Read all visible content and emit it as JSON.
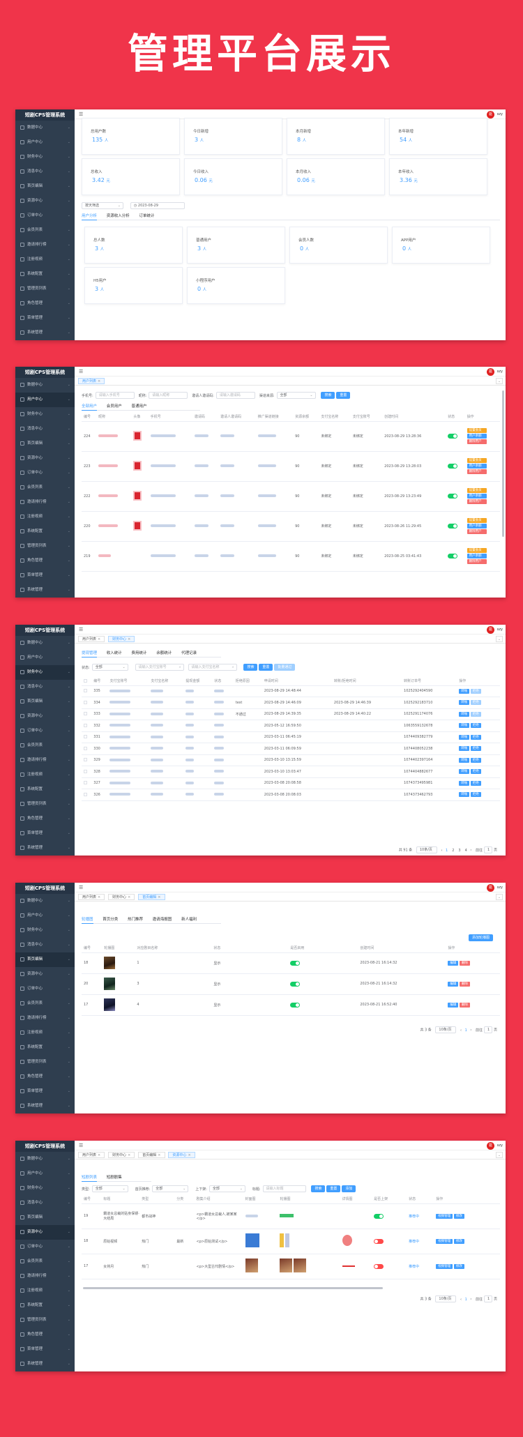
{
  "hero_title": "管理平台展示",
  "brand": "短剧CPS管理系统",
  "user": {
    "avatar_text": "驱",
    "name": "szy"
  },
  "sidebar_items": [
    "数据中心",
    "用户中心",
    "财务中心",
    "消息中心",
    "首页编辑",
    "资源中心",
    "订单中心",
    "会员列表",
    "邀请排行榜",
    "注册视频",
    "系统配置",
    "管理员列表",
    "角色管理",
    "菜单管理",
    "系统管理"
  ],
  "tabs": {
    "user_list": "用户列表",
    "finance": "财务中心",
    "home_edit": "首页编辑",
    "resource": "资源中心"
  },
  "p1": {
    "cards_row": [
      {
        "label": "总用户数",
        "value": "135",
        "unit": "人"
      },
      {
        "label": "今日新增",
        "value": "3",
        "unit": "人"
      },
      {
        "label": "本月新增",
        "value": "8",
        "unit": "人"
      },
      {
        "label": "本年新增",
        "value": "54",
        "unit": "人"
      },
      {
        "label": "总收入",
        "value": "3.42",
        "unit": "元"
      },
      {
        "label": "今日收入",
        "value": "0.06",
        "unit": "元"
      },
      {
        "label": "本月收入",
        "value": "0.06",
        "unit": "元"
      },
      {
        "label": "本年收入",
        "value": "3.36",
        "unit": "元"
      }
    ],
    "filter_select": "按天筛选",
    "date_value": "2023-08-29",
    "subtabs": [
      "用户分析",
      "资源收入分析",
      "订单统计"
    ],
    "cards_users": [
      {
        "label": "总人数",
        "value": "3",
        "unit": "人"
      },
      {
        "label": "普通用户",
        "value": "3",
        "unit": "人"
      },
      {
        "label": "会员人数",
        "value": "0",
        "unit": "人"
      },
      {
        "label": "APP用户",
        "value": "0",
        "unit": "人"
      },
      {
        "label": "H5用户",
        "value": "3",
        "unit": "人"
      },
      {
        "label": "小程序用户",
        "value": "0",
        "unit": "人"
      }
    ]
  },
  "p2": {
    "filters": {
      "phone_label": "手机号:",
      "phone_ph": "请输入手机号",
      "nick_label": "昵称:",
      "nick_ph": "请输入昵称",
      "inviter_label": "邀请人邀请码:",
      "inviter_ph": "请输入邀请码",
      "src_label": "渠道来源:",
      "src_value": "全部",
      "search": "搜索",
      "reset": "重置"
    },
    "subtabs": [
      "全部用户",
      "会员用户",
      "普通用户"
    ],
    "headers": [
      "编号",
      "昵称",
      "头像",
      "手机号",
      "邀请码",
      "邀请人邀请码",
      "推广渠道链接",
      "资源余额",
      "支付宝名称",
      "支付宝账号",
      "创建时间",
      "状态",
      "操作"
    ],
    "rows": [
      {
        "id": "224",
        "balance": "90",
        "alipay_name": "未绑定",
        "alipay_acc": "未绑定",
        "time": "2023-08-29 13:28:36"
      },
      {
        "id": "223",
        "balance": "90",
        "alipay_name": "未绑定",
        "alipay_acc": "未绑定",
        "time": "2023-08-29 13:28:03"
      },
      {
        "id": "222",
        "balance": "90",
        "alipay_name": "未绑定",
        "alipay_acc": "未绑定",
        "time": "2023-08-29 13:23:49"
      },
      {
        "id": "220",
        "balance": "90",
        "alipay_name": "未绑定",
        "alipay_acc": "未绑定",
        "time": "2023-08-26 11:29:45"
      },
      {
        "id": "219",
        "balance": "90",
        "alipay_name": "未绑定",
        "alipay_acc": "未绑定",
        "time": "2023-08-25 03:41:43"
      }
    ],
    "ops": [
      "设置会员",
      "用户余额",
      "删除用户"
    ]
  },
  "p3": {
    "subtabs": [
      "提现管理",
      "收入统计",
      "费用统计",
      "余额统计",
      "代理记录"
    ],
    "status_label": "状态:",
    "status_value": "全部",
    "ph1": "请输入支付宝账号",
    "ph2": "请输入支付宝名称",
    "btn_search": "搜索",
    "btn_reset": "重置",
    "btn_batch": "批量通过",
    "headers": [
      "编号",
      "支付宝账号",
      "支付宝名称",
      "提现金额",
      "状态",
      "拒绝原因",
      "申请时间",
      "转账/拒绝时间",
      "转账订单号",
      "操作"
    ],
    "rows": [
      {
        "id": "335",
        "reason": "",
        "apply": "2023-08-29 14:48:44",
        "done": "",
        "order": "1025292404590"
      },
      {
        "id": "334",
        "reason": "test",
        "apply": "2023-08-29 14:46:09",
        "done": "2023-08-29 14:46:39",
        "order": "1025292183710"
      },
      {
        "id": "333",
        "reason": "不通过",
        "apply": "2023-08-29 14:39:35",
        "done": "2023-08-29 14:40:22",
        "order": "1025291174076"
      },
      {
        "id": "332",
        "reason": "",
        "apply": "2023-05-12 16:59:50",
        "done": "",
        "order": "1063559132678"
      },
      {
        "id": "331",
        "reason": "",
        "apply": "2023-03-11 06:45:19",
        "done": "",
        "order": "1074409382779"
      },
      {
        "id": "330",
        "reason": "",
        "apply": "2023-03-11 06:09:59",
        "done": "",
        "order": "1074408052238"
      },
      {
        "id": "329",
        "reason": "",
        "apply": "2023-03-10 13:15:59",
        "done": "",
        "order": "1074402397164"
      },
      {
        "id": "328",
        "reason": "",
        "apply": "2023-03-10 13:03:47",
        "done": "",
        "order": "1074404882677"
      },
      {
        "id": "327",
        "reason": "",
        "apply": "2023-03-08 20:08:58",
        "done": "",
        "order": "1074373495981"
      },
      {
        "id": "326",
        "reason": "",
        "apply": "2023-03-08 20:08:03",
        "done": "",
        "order": "1074373462793"
      }
    ],
    "ops": [
      "转账",
      "拒绝"
    ],
    "pager": {
      "total": "共 91 条",
      "size": "10条/页",
      "pages": [
        "1",
        "2",
        "3",
        "4"
      ],
      "goto": "前往",
      "page": "1",
      "unit": "页"
    }
  },
  "p4": {
    "subtabs": [
      "轮播图",
      "首页分类",
      "热门推荐",
      "邀请海报图",
      "新人福利"
    ],
    "add_btn": "添加轮播图",
    "headers": [
      "编号",
      "轮播图",
      "对应剧目名称",
      "状态",
      "是否启用",
      "创建时间",
      "操作"
    ],
    "rows": [
      {
        "id": "18",
        "name": "1",
        "state": "显示",
        "time": "2023-08-21 16:14:32"
      },
      {
        "id": "20",
        "name": "3",
        "state": "显示",
        "time": "2023-08-21 16:14:32"
      },
      {
        "id": "17",
        "name": "4",
        "state": "显示",
        "time": "2023-08-21 16:52:40"
      }
    ],
    "ops": [
      "编辑",
      "删除"
    ],
    "pager": {
      "total": "共 3 条",
      "size": "10条/页",
      "page": "1",
      "goto": "前往",
      "unit": "页"
    }
  },
  "p5": {
    "subtabs": [
      "短剧列表",
      "短剧剧集"
    ],
    "filters": {
      "type_label": "类型:",
      "type_value": "全部",
      "rec_label": "首页推荐:",
      "rec_value": "全部",
      "shelf_label": "上下架:",
      "shelf_value": "全部",
      "title_label": "标题:",
      "title_ph": "请输入标题",
      "search": "搜索",
      "reset": "重置",
      "add": "添加"
    },
    "headers": [
      "编号",
      "标题",
      "类型",
      "分类",
      "剧集介绍",
      "封面图",
      "轮播图",
      "详情图",
      "是否上架",
      "状态",
      "操作"
    ],
    "rows": [
      {
        "id": "19",
        "title": "霸道女总裁的贴身保镖·大结局",
        "type": "都市战神",
        "cat": "",
        "intro": "<p>霸道女总裁人,被某某</p>",
        "status": "推荐中"
      },
      {
        "id": "18",
        "title": "原始视频",
        "type": "热门",
        "cat": "最新",
        "intro": "<p>原始测试</p>",
        "status": "推荐中"
      },
      {
        "id": "17",
        "title": "女将月",
        "type": "热门",
        "cat": "",
        "intro": "<p>大型古代剧情</p>",
        "status": "推荐中"
      }
    ],
    "ops": [
      "视频管理",
      "修改",
      "删除"
    ],
    "pager": {
      "total": "共 3 条",
      "size": "10条/页",
      "page": "1",
      "goto": "前往",
      "unit": "页"
    }
  },
  "colors": {
    "bg": "#f0344a",
    "primary": "#409eff",
    "sidebar": "#2f3e4f",
    "success": "#13ce66",
    "danger": "#f56c6c",
    "warn": "#f5a623"
  }
}
